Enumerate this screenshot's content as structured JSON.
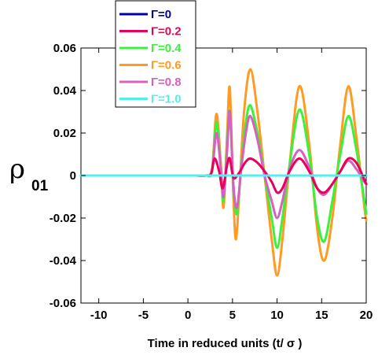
{
  "chart_data": {
    "type": "line",
    "xlabel": "Time in reduced units (t/ σ )",
    "ylabel": "ρ",
    "ylabel_sub": "01",
    "xlim": [
      -12,
      20
    ],
    "ylim": [
      -0.06,
      0.06
    ],
    "x_ticks": [
      -10,
      -5,
      0,
      5,
      10,
      15,
      20
    ],
    "x_tick_labels": [
      "-10",
      "-5",
      "0",
      "5",
      "10",
      "15",
      "20"
    ],
    "y_ticks": [
      -0.06,
      -0.04,
      -0.02,
      0,
      0.02,
      0.04,
      0.06
    ],
    "y_tick_labels": [
      "-0.06",
      "-0.04",
      "-0.02",
      "0",
      "0.02",
      "0.04",
      "0.06"
    ],
    "grid": false,
    "legend_position": "top-left (outside plot, above)",
    "series": [
      {
        "name": "Γ=0",
        "color": "#0000a0",
        "x": [
          -12,
          20
        ],
        "y": [
          0,
          0
        ]
      },
      {
        "name": "Γ=0.2",
        "color": "#e8005a",
        "x": [
          1.0,
          2.0,
          2.6,
          3.0,
          3.5,
          3.9,
          4.4,
          4.7,
          5.1,
          5.7,
          6.4,
          7.0,
          7.8,
          8.6,
          9.4,
          10.0,
          10.6,
          11.4,
          12.5,
          13.6,
          14.5,
          15.3,
          16.2,
          17.1,
          18.0,
          18.9,
          19.8,
          20
        ],
        "y": [
          0,
          0,
          0.001,
          0.008,
          0.002,
          -0.006,
          0.005,
          0.008,
          -0.001,
          0.001,
          0.006,
          0.008,
          0.006,
          0.002,
          -0.003,
          -0.008,
          -0.006,
          0.002,
          0.008,
          0.002,
          -0.006,
          -0.008,
          -0.004,
          0.002,
          0.008,
          0.006,
          -0.002,
          -0.004
        ]
      },
      {
        "name": "Γ=0.4",
        "color": "#3cf03c",
        "x": [
          1.0,
          2.0,
          2.7,
          3.2,
          3.7,
          4.0,
          4.4,
          4.7,
          5.1,
          5.5,
          6.0,
          6.5,
          7.0,
          7.8,
          8.6,
          9.4,
          10.0,
          10.6,
          11.4,
          12.5,
          13.6,
          14.5,
          15.3,
          16.2,
          17.1,
          18.0,
          18.9,
          19.8,
          20
        ],
        "y": [
          0,
          0,
          0.002,
          0.025,
          0.003,
          -0.012,
          0.015,
          0.03,
          -0.005,
          -0.018,
          0.005,
          0.025,
          0.033,
          0.02,
          0.0,
          -0.02,
          -0.034,
          -0.02,
          0.005,
          0.031,
          0.01,
          -0.02,
          -0.031,
          -0.012,
          0.01,
          0.028,
          0.012,
          -0.012,
          -0.018
        ]
      },
      {
        "name": "Γ=0.6",
        "color": "#ff9a22",
        "x": [
          1.0,
          2.0,
          2.7,
          3.2,
          3.7,
          4.0,
          4.4,
          4.7,
          5.1,
          5.4,
          5.8,
          6.3,
          7.0,
          7.8,
          8.6,
          9.4,
          10.0,
          10.6,
          11.4,
          12.5,
          13.6,
          14.5,
          15.3,
          16.2,
          17.1,
          18.0,
          18.9,
          19.8,
          20
        ],
        "y": [
          0,
          0,
          0.003,
          0.029,
          0.005,
          -0.015,
          0.02,
          0.041,
          -0.01,
          -0.03,
          -0.005,
          0.03,
          0.05,
          0.03,
          0.0,
          -0.03,
          -0.047,
          -0.03,
          0.005,
          0.042,
          0.015,
          -0.025,
          -0.04,
          -0.02,
          0.015,
          0.042,
          0.018,
          -0.015,
          -0.021
        ]
      },
      {
        "name": "Γ=0.8",
        "color": "#d860c0",
        "x": [
          1.0,
          2.0,
          2.7,
          3.2,
          3.7,
          4.0,
          4.4,
          4.7,
          5.1,
          5.5,
          6.0,
          6.5,
          7.0,
          7.8,
          8.6,
          9.4,
          10.0,
          10.6,
          11.4,
          12.5,
          13.6,
          14.5,
          15.3,
          16.2,
          17.1,
          18.0,
          18.9,
          19.8,
          20
        ],
        "y": [
          0,
          0,
          0.002,
          0.02,
          0.003,
          -0.01,
          0.012,
          0.03,
          -0.004,
          -0.015,
          0.004,
          0.02,
          0.028,
          0.017,
          0.0,
          -0.012,
          -0.02,
          -0.012,
          0.003,
          0.012,
          0.004,
          -0.006,
          -0.009,
          -0.004,
          0.002,
          0.007,
          0.003,
          -0.003,
          -0.004
        ]
      },
      {
        "name": "Γ=1.0",
        "color": "#50f0f0",
        "x": [
          -12,
          20
        ],
        "y": [
          0,
          0
        ]
      }
    ]
  }
}
